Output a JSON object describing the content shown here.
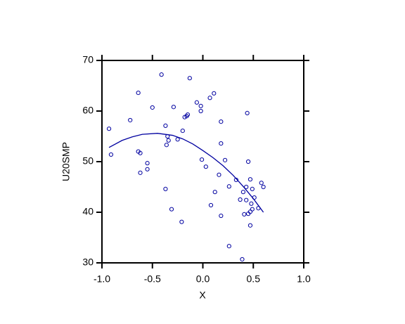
{
  "chart_data": {
    "type": "scatter",
    "xlabel": "X",
    "ylabel": "U20SMP",
    "xlim": [
      -1.0,
      1.0
    ],
    "xticks": [
      {
        "value": -1.0,
        "label": "-1.0"
      },
      {
        "value": -0.5,
        "label": "-0.5"
      },
      {
        "value": 0,
        "label": "0.0"
      },
      {
        "value": 0.5,
        "label": "0.5"
      },
      {
        "value": 1.0,
        "label": "1.0"
      }
    ],
    "ylim": [
      30,
      70
    ],
    "yticks": [
      30,
      40,
      50,
      60,
      70
    ],
    "series": [
      {
        "type": "scatter",
        "color": "#0000a0",
        "x": [
          -0.93,
          -0.91,
          -0.72,
          -0.64,
          -0.64,
          -0.62,
          -0.62,
          -0.55,
          -0.55,
          -0.5,
          -0.41,
          -0.37,
          -0.37,
          -0.35,
          -0.34,
          -0.36,
          -0.31,
          -0.29,
          -0.25,
          -0.21,
          -0.2,
          -0.18,
          -0.16,
          -0.15,
          -0.13,
          -0.06,
          -0.02,
          -0.02,
          -0.01,
          0.03,
          0.07,
          0.11,
          0.08,
          0.12,
          0.16,
          0.18,
          0.18,
          0.18,
          0.22,
          0.26,
          0.26,
          0.33,
          0.37,
          0.39,
          0.4,
          0.43,
          0.44,
          0.45,
          0.41,
          0.43,
          0.45,
          0.47,
          0.47,
          0.47,
          0.49,
          0.48,
          0.49,
          0.51,
          0.55,
          0.58,
          0.6
        ],
        "values": [
          56.5,
          51.4,
          58.2,
          63.6,
          52.0,
          51.7,
          47.8,
          49.7,
          48.5,
          60.7,
          67.2,
          57.1,
          44.6,
          55.0,
          54.2,
          53.3,
          40.6,
          60.8,
          54.4,
          38.1,
          56.1,
          58.8,
          59.0,
          59.3,
          66.5,
          61.7,
          61.0,
          60.0,
          50.4,
          49.0,
          62.6,
          63.5,
          41.4,
          44.0,
          47.4,
          57.9,
          53.6,
          39.3,
          50.3,
          45.1,
          33.3,
          46.4,
          42.5,
          30.7,
          44.0,
          45.0,
          59.6,
          50.0,
          39.6,
          42.4,
          39.7,
          40.1,
          46.5,
          37.4,
          44.6,
          41.7,
          40.6,
          42.9,
          40.8,
          45.8,
          45.0
        ]
      },
      {
        "type": "line",
        "color": "#0000a0",
        "x": [
          -0.93,
          -0.8,
          -0.7,
          -0.6,
          -0.45,
          -0.3,
          -0.2,
          -0.1,
          0,
          0.1,
          0.2,
          0.3,
          0.4,
          0.5,
          0.6
        ],
        "values": [
          52.8,
          54.2,
          54.9,
          55.4,
          55.6,
          55.2,
          54.5,
          53.5,
          52.2,
          50.8,
          49.2,
          47.3,
          45.1,
          42.7,
          40.0
        ]
      }
    ]
  }
}
